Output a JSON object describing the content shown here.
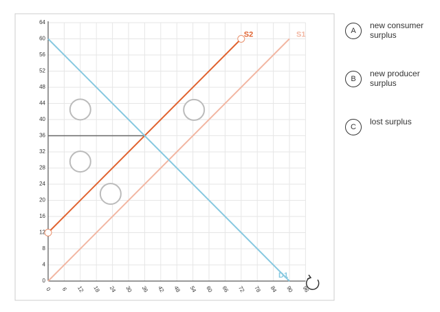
{
  "chart_data": {
    "type": "line",
    "xlim": [
      0,
      96
    ],
    "ylim": [
      0,
      64
    ],
    "xticks": [
      0,
      6,
      12,
      18,
      24,
      30,
      36,
      42,
      48,
      54,
      60,
      66,
      72,
      78,
      84,
      90,
      96
    ],
    "yticks": [
      0,
      4,
      8,
      12,
      16,
      20,
      24,
      28,
      32,
      36,
      40,
      44,
      48,
      52,
      56,
      60,
      64
    ],
    "grid": true,
    "series": [
      {
        "name": "S2",
        "color": "#e0622f",
        "x": [
          0,
          72
        ],
        "values": [
          12,
          60
        ],
        "markers": true
      },
      {
        "name": "S1",
        "color": "#f2b6a2",
        "x": [
          0,
          90
        ],
        "values": [
          0,
          60
        ],
        "markers": false
      },
      {
        "name": "D1",
        "color": "#86c8e0",
        "x": [
          0,
          90
        ],
        "values": [
          60,
          0
        ],
        "markers": false
      }
    ],
    "guides": [
      {
        "color": "#666666",
        "x": [
          0,
          36
        ],
        "values": [
          36,
          36
        ]
      }
    ],
    "targets": [
      {
        "x": 12,
        "y": 42.5
      },
      {
        "x": 12,
        "y": 29.6
      },
      {
        "x": 23.3,
        "y": 21.6
      },
      {
        "x": 54.4,
        "y": 42.4
      }
    ]
  },
  "options": [
    {
      "letter": "A",
      "label": "new consumer surplus"
    },
    {
      "letter": "B",
      "label": "new producer surplus"
    },
    {
      "letter": "C",
      "label": "lost surplus"
    }
  ]
}
